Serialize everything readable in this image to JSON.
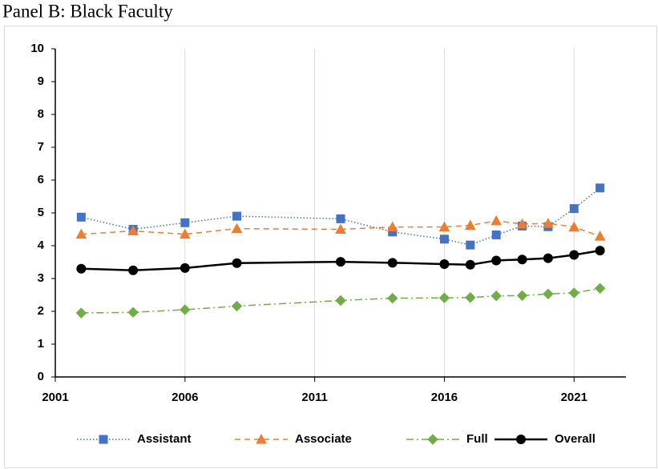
{
  "chart_data": {
    "type": "line",
    "title": "Panel B: Black Faculty",
    "x": [
      2002,
      2004,
      2006,
      2008,
      2012,
      2014,
      2016,
      2017,
      2018,
      2019,
      2020,
      2021,
      2022
    ],
    "series": [
      {
        "name": "Assistant",
        "color": "#4472c4",
        "style": "dotted",
        "marker": "square",
        "values": [
          4.87,
          4.5,
          4.7,
          4.9,
          4.82,
          4.42,
          4.2,
          4.02,
          4.33,
          4.6,
          4.58,
          5.13,
          5.76
        ]
      },
      {
        "name": "Associate",
        "color": "#ed7d31",
        "style": "dashed",
        "marker": "triangle",
        "values": [
          4.35,
          4.45,
          4.35,
          4.52,
          4.5,
          4.57,
          4.57,
          4.62,
          4.76,
          4.66,
          4.68,
          4.57,
          4.29
        ]
      },
      {
        "name": "Full",
        "color": "#70ad47",
        "style": "dashdot",
        "marker": "diamond",
        "values": [
          1.95,
          1.97,
          2.05,
          2.16,
          2.33,
          2.4,
          2.41,
          2.42,
          2.47,
          2.48,
          2.53,
          2.56,
          2.7
        ]
      },
      {
        "name": "Overall",
        "color": "#000000",
        "style": "solid",
        "marker": "circle",
        "values": [
          3.3,
          3.25,
          3.32,
          3.47,
          3.51,
          3.48,
          3.44,
          3.42,
          3.55,
          3.58,
          3.62,
          3.72,
          3.85
        ]
      }
    ],
    "xlim": [
      2001,
      2023
    ],
    "xticks": [
      2001,
      2006,
      2011,
      2016,
      2021
    ],
    "ylim": [
      0,
      10
    ],
    "yticks": [
      0,
      1,
      2,
      3,
      4,
      5,
      6,
      7,
      8,
      9,
      10
    ],
    "grid": "x",
    "legend": "bottom"
  }
}
